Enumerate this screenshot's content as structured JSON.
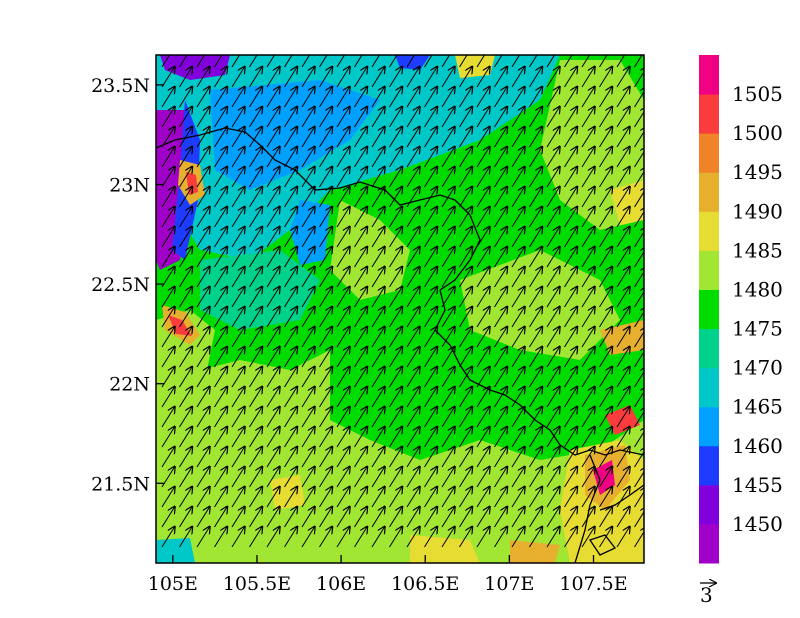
{
  "map": {
    "x_ticks": [
      {
        "value": 105.0,
        "label": "105E"
      },
      {
        "value": 105.5,
        "label": "105.5E"
      },
      {
        "value": 106.0,
        "label": "106E"
      },
      {
        "value": 106.5,
        "label": "106.5E"
      },
      {
        "value": 107.0,
        "label": "107E"
      },
      {
        "value": 107.5,
        "label": "107.5E"
      }
    ],
    "y_ticks": [
      {
        "value": 21.5,
        "label": "21.5N"
      },
      {
        "value": 22.0,
        "label": "22N"
      },
      {
        "value": 22.5,
        "label": "22.5N"
      },
      {
        "value": 23.0,
        "label": "23N"
      },
      {
        "value": 23.5,
        "label": "23.5N"
      }
    ],
    "lon_range": [
      104.9,
      107.8
    ],
    "lat_range": [
      21.1,
      23.65
    ],
    "wind_direction": "toward north-east",
    "border_color": "#000000"
  },
  "colorbar": {
    "levels": [
      1450,
      1455,
      1460,
      1465,
      1470,
      1475,
      1480,
      1485,
      1490,
      1495,
      1500,
      1505
    ],
    "colors": [
      "#a000c8",
      "#8200dc",
      "#1e3cff",
      "#00a0ff",
      "#00c8c8",
      "#00d28c",
      "#00dc00",
      "#a0e632",
      "#e6dc32",
      "#e6af2d",
      "#f08228",
      "#fa3c3c",
      "#f00082"
    ]
  },
  "reference_vector": {
    "label": "3"
  }
}
